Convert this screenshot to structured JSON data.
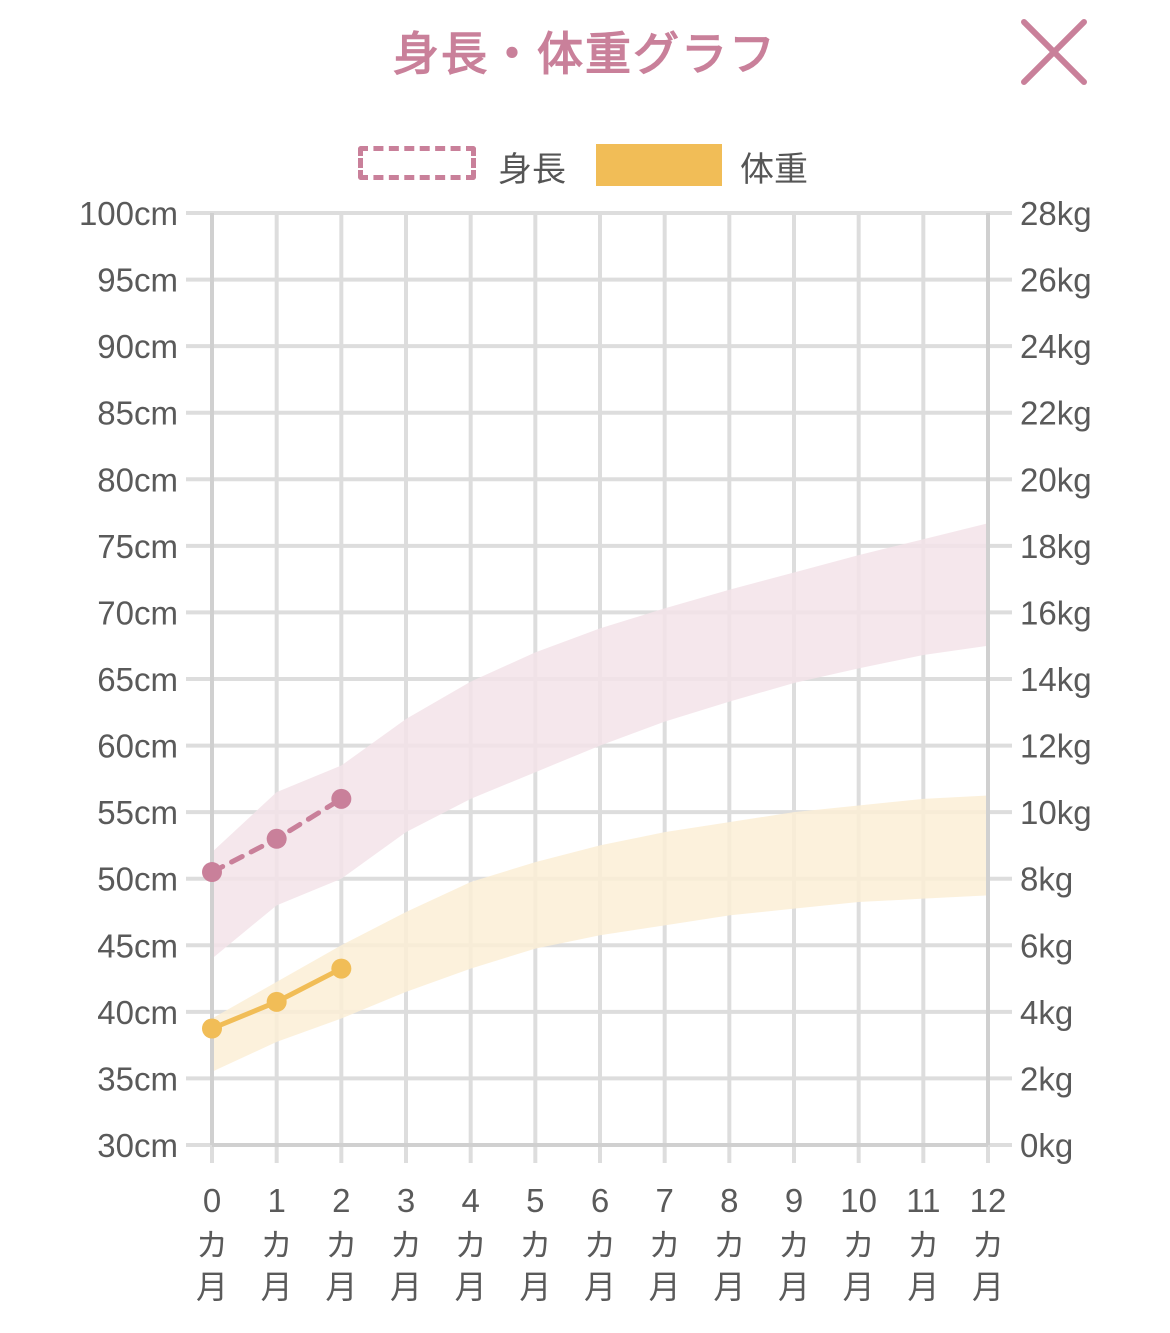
{
  "header": {
    "title": "身長・体重グラフ",
    "close_icon": "close-icon"
  },
  "legend": {
    "height_label": "身長",
    "weight_label": "体重"
  },
  "colors": {
    "title": "#c9809a",
    "height_line": "#c9809a",
    "height_band": "#f3e3e9",
    "weight_line": "#f1bd57",
    "weight_band": "#fcefd6",
    "grid": "#dddddd"
  },
  "chart_data": {
    "type": "line",
    "x": [
      0,
      1,
      2,
      3,
      4,
      5,
      6,
      7,
      8,
      9,
      10,
      11,
      12
    ],
    "x_tick_labels": [
      "0",
      "1",
      "2",
      "3",
      "4",
      "5",
      "6",
      "7",
      "8",
      "9",
      "10",
      "11",
      "12"
    ],
    "x_unit_chars": [
      "カ",
      "月"
    ],
    "y_left": {
      "lim": [
        30,
        100
      ],
      "ticks": [
        30,
        35,
        40,
        45,
        50,
        55,
        60,
        65,
        70,
        75,
        80,
        85,
        90,
        95,
        100
      ],
      "tick_labels": [
        "30cm",
        "35cm",
        "40cm",
        "45cm",
        "50cm",
        "55cm",
        "60cm",
        "65cm",
        "70cm",
        "75cm",
        "80cm",
        "85cm",
        "90cm",
        "95cm",
        "100cm"
      ]
    },
    "y_right": {
      "lim": [
        0,
        28
      ],
      "ticks": [
        0,
        2,
        4,
        6,
        8,
        10,
        12,
        14,
        16,
        18,
        20,
        22,
        24,
        26,
        28
      ],
      "tick_labels": [
        "0kg",
        "2kg",
        "4kg",
        "6kg",
        "8kg",
        "10kg",
        "12kg",
        "14kg",
        "16kg",
        "18kg",
        "20kg",
        "22kg",
        "24kg",
        "26kg",
        "28kg"
      ]
    },
    "grid": true,
    "legend_position": "top-center",
    "series": [
      {
        "name": "身長",
        "axis": "left",
        "style": "dashed",
        "points": [
          {
            "x": 0,
            "y": 50.5
          },
          {
            "x": 1,
            "y": 53.0
          },
          {
            "x": 2,
            "y": 56.0
          }
        ],
        "band_upper": [
          52.0,
          56.5,
          58.5,
          62.0,
          64.8,
          67.0,
          68.8,
          70.3,
          71.7,
          73.0,
          74.3,
          75.5,
          76.7
        ],
        "band_lower": [
          44.0,
          48.0,
          50.0,
          53.5,
          56.0,
          58.0,
          60.0,
          61.8,
          63.3,
          64.7,
          65.8,
          66.8,
          67.5
        ]
      },
      {
        "name": "体重",
        "axis": "right",
        "style": "solid",
        "points": [
          {
            "x": 0,
            "y": 3.5
          },
          {
            "x": 1,
            "y": 4.3
          },
          {
            "x": 2,
            "y": 5.3
          }
        ],
        "band_upper": [
          3.8,
          4.9,
          6.0,
          7.0,
          7.9,
          8.5,
          9.0,
          9.4,
          9.7,
          10.0,
          10.2,
          10.4,
          10.5
        ],
        "band_lower": [
          2.2,
          3.1,
          3.8,
          4.6,
          5.3,
          5.9,
          6.3,
          6.6,
          6.9,
          7.1,
          7.3,
          7.4,
          7.5
        ]
      }
    ]
  }
}
